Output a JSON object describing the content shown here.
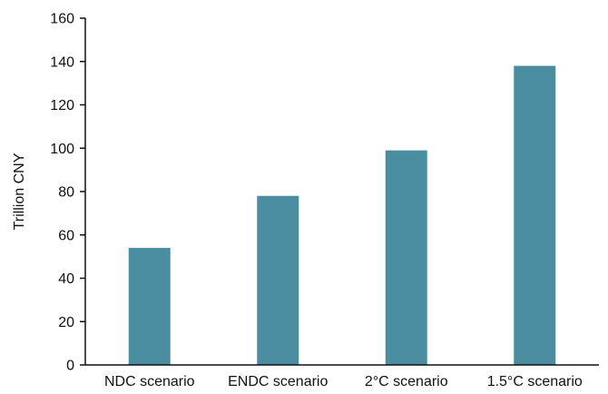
{
  "chart_data": {
    "type": "bar",
    "categories": [
      "NDC scenario",
      "ENDC scenario",
      "2°C scenario",
      "1.5°C scenario"
    ],
    "values": [
      54,
      78,
      99,
      138
    ],
    "title": "",
    "xlabel": "",
    "ylabel": "Trillion CNY",
    "ylim": [
      0,
      160
    ],
    "yticks": [
      0,
      20,
      40,
      60,
      80,
      100,
      120,
      140,
      160
    ],
    "grid": false,
    "legend": "none",
    "bar_color": "#4a8da0",
    "axis_color": "#111111"
  }
}
